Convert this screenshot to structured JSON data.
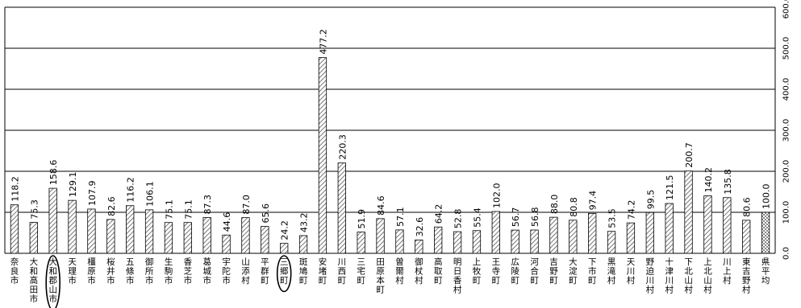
{
  "chart_data": {
    "type": "bar",
    "title": "",
    "xlabel": "",
    "ylabel": "",
    "ylim": [
      0,
      600
    ],
    "yticks": [
      0,
      100,
      200,
      300,
      400,
      500,
      600
    ],
    "ytick_labels": [
      "0.0",
      "100.0",
      "200.0",
      "300.0",
      "400.0",
      "500.0",
      "600.0"
    ],
    "grid": true,
    "categories": [
      "奈良市",
      "大和高田市",
      "大和郡山市",
      "天理市",
      "橿原市",
      "桜井市",
      "五條市",
      "御所市",
      "生駒市",
      "香芝市",
      "葛城市",
      "宇陀市",
      "山添村",
      "平群町",
      "三郷町",
      "斑鳩町",
      "安堵町",
      "川西町",
      "三宅町",
      "田原本町",
      "曽爾村",
      "御杖村",
      "高取町",
      "明日香村",
      "上牧町",
      "王寺町",
      "広陵町",
      "河合町",
      "吉野町",
      "大淀町",
      "下市町",
      "黒滝村",
      "天川村",
      "野迫川村",
      "十津川村",
      "下北山村",
      "上北山村",
      "川上村",
      "東吉野村",
      "県平均"
    ],
    "values": [
      118.2,
      75.3,
      158.6,
      129.1,
      107.9,
      82.6,
      116.2,
      106.1,
      75.1,
      75.1,
      87.3,
      44.6,
      87.0,
      65.6,
      24.2,
      43.2,
      477.2,
      220.3,
      51.9,
      84.6,
      57.1,
      32.6,
      64.2,
      52.8,
      55.4,
      102.0,
      56.7,
      56.8,
      88.0,
      80.8,
      97.4,
      53.5,
      74.2,
      99.5,
      121.5,
      200.7,
      140.2,
      135.8,
      80.6,
      100.0
    ],
    "value_labels": [
      "118.2",
      "75.3",
      "158.6",
      "129.1",
      "107.9",
      "82.6",
      "116.2",
      "106.1",
      "75.1",
      "75.1",
      "87.3",
      "44.6",
      "87.0",
      "65.6",
      "24.2",
      "43.2",
      "477.2",
      "220.3",
      "51.9",
      "84.6",
      "57.1",
      "32.6",
      "64.2",
      "52.8",
      "55.4",
      "102.0",
      "56.7",
      "56.8",
      "88.0",
      "80.8",
      "97.4",
      "53.5",
      "74.2",
      "99.5",
      "121.5",
      "200.7",
      "140.2",
      "135.8",
      "80.6",
      "100.0"
    ],
    "highlighted": [
      "大和郡山市",
      "三郷町"
    ],
    "average_category": "県平均",
    "colors": {
      "bar_hatch": "#555555",
      "avg_check": "#888888",
      "grid": "#000000"
    }
  }
}
